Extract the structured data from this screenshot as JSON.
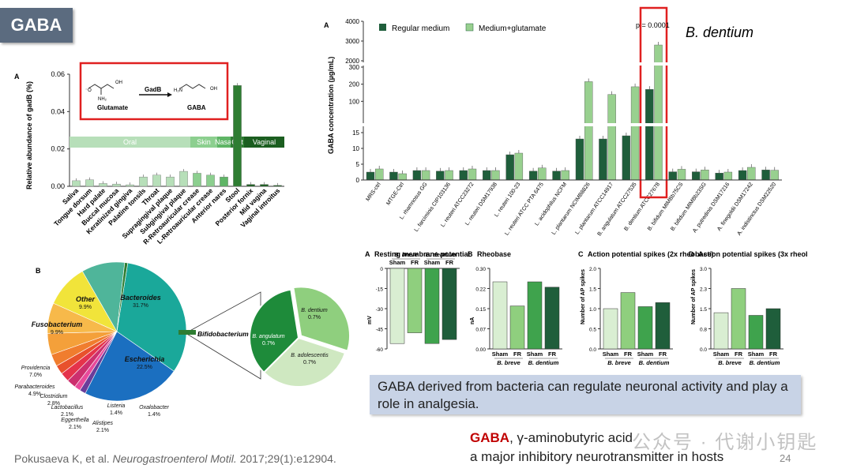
{
  "slide": {
    "tag": "GABA",
    "reference_prefix": "Pokusaeva K, et al. ",
    "reference_journal": "Neurogastroenterol Motil.",
    "reference_suffix": " 2017;29(1):e12904.",
    "caption": "GABA derived from bacteria can regulate neuronal activity and play a role in analgesia.",
    "bottom_gaba": "GABA",
    "bottom_line1_rest": ", γ-aminobutyric acid",
    "bottom_line2": "a major inhibitory neurotransmitter in hosts",
    "page_number": "24",
    "watermark": "公众号 · 代谢小钥匙"
  },
  "panel_a_left": {
    "letter": "A",
    "ylabel": "Relative abundance of gadB (%)",
    "yticks": [
      "0.06",
      "0.04",
      "0.02",
      "0.00"
    ],
    "reaction": {
      "enzyme": "GadB",
      "substrate": "Glutamate",
      "product": "GABA"
    },
    "bands": [
      "Oral",
      "Skin",
      "Nasal",
      "Gut",
      "Vaginal"
    ],
    "colors": {
      "oral": "#b7dfb9",
      "skin": "#8ccf8f",
      "nasal": "#5fb566",
      "gut": "#2e7d32",
      "vaginal": "#1b5e20",
      "frame": "#e02020"
    }
  },
  "chart_data": [
    {
      "type": "bar",
      "title": "",
      "ylabel": "Relative abundance of gadB (%)",
      "ylim": [
        0,
        0.06
      ],
      "categories": [
        "Saliva",
        "Tongue dorsum",
        "Hard palate",
        "Buccal mucosa",
        "Keratinized gingiva",
        "Palatine tonsils",
        "Throat",
        "Supragingival plaque",
        "Subgingival plaque",
        "R-Retroauricular crease",
        "L-Retroauricular crease",
        "Anterior nares",
        "Stool",
        "Posterior fornix",
        "Mid vagina",
        "Vaginal introitus"
      ],
      "values": [
        0.003,
        0.0035,
        0.0015,
        0.0012,
        0.0008,
        0.005,
        0.006,
        0.005,
        0.008,
        0.007,
        0.006,
        0.005,
        0.054,
        0.001,
        0.001,
        0.0005
      ]
    },
    {
      "type": "bar",
      "title": "B. dentium",
      "ylabel": "GABA concentration (µg/mL)",
      "annotation": "p = 0.0001",
      "yticks": [
        "4000",
        "3000",
        "2000",
        "300",
        "200",
        "100",
        "15",
        "10",
        "5",
        "0"
      ],
      "categories": [
        "MRS-ctrl",
        "MTGE-Ctrl",
        "L. rhamnosus GG",
        "L. farciminis CIP103136",
        "L. reuteri ATCC23272",
        "L. reuteri DSM17938",
        "L. reuteri 100-23",
        "L. reuteri ATCC PTA 6475",
        "L. acidophilus NCFM",
        "L. plantarum NCIMB8826",
        "L. plantarum ATCC14917",
        "B. angulatum ATCC27535",
        "B. dentium ATCC27678",
        "B. bifidum MIMBb75CS",
        "B. bifidum MIMBb23SG",
        "A. putredinis DSM17216",
        "A. finegoldii DSM17242",
        "A. indistinctus DSM22520"
      ],
      "series": [
        {
          "name": "Regular medium",
          "values": [
            2.5,
            2.5,
            3.0,
            2.8,
            3.0,
            3.0,
            8.0,
            2.8,
            2.8,
            13,
            13,
            14,
            170,
            2.6,
            2.6,
            2.2,
            3.0,
            3.2
          ]
        },
        {
          "name": "Medium+glutamate",
          "values": [
            3.5,
            2.0,
            3.0,
            3.0,
            3.5,
            3.0,
            8.5,
            3.8,
            3.0,
            215,
            140,
            185,
            2800,
            3.4,
            3.2,
            2.5,
            4.0,
            3.1
          ]
        }
      ],
      "colors": {
        "regular": "#1f5e3b",
        "glutamate": "#98d08f"
      }
    },
    {
      "type": "pie",
      "title": "",
      "categories": [
        "Bacteroides",
        "Escherichia",
        "Oxalobacter",
        "Listeria",
        "Alistipes",
        "Eggerthella",
        "Lactobacillus",
        "Clostridium",
        "Parabacteroides",
        "Providencia",
        "Fusobacterium",
        "Other",
        "Bifidobacterium"
      ],
      "values": [
        31.7,
        22.5,
        1.4,
        1.4,
        2.1,
        2.1,
        2.1,
        2.8,
        4.9,
        7.0,
        9.9,
        9.9,
        0.7
      ],
      "labels": [
        "31.7%",
        "22.5%",
        "1.4%",
        "1.4%",
        "2.1%",
        "2.1%",
        "2.1%",
        "2.8%",
        "4.9%",
        "7.0%",
        "9.9%",
        "9.9%",
        ""
      ],
      "colors": [
        "#1aa89a",
        "#1b6fc0",
        "#6a3d9a",
        "#e84a9b",
        "#cc2f6e",
        "#e5334b",
        "#e8512c",
        "#f07d2e",
        "#f4a03a",
        "#f7b94a",
        "#f1e43a",
        "#4fb59a",
        "#2e7d32"
      ]
    },
    {
      "type": "pie",
      "title": "",
      "categories": [
        "B. dentium",
        "B. angulatum",
        "B. adolescentis"
      ],
      "values": [
        0.7,
        0.7,
        0.7
      ],
      "labels": [
        "0.7%",
        "0.7%",
        "0.7%"
      ],
      "colors": [
        "#8fcf7e",
        "#1e8b3a",
        "#cfe8c1"
      ]
    },
    {
      "type": "bar",
      "title": "Resting membrane potential",
      "ylabel": "mV",
      "ylim": [
        -60,
        0
      ],
      "groups": [
        "B. breve",
        "B. dentium"
      ],
      "categories": [
        "Sham",
        "FR",
        "Sham",
        "FR"
      ],
      "values": [
        -56,
        -48,
        -56,
        -53
      ]
    },
    {
      "type": "bar",
      "title": "Rheobase",
      "ylabel": "nA",
      "ylim": [
        0,
        0.3
      ],
      "groups": [
        "B. breve",
        "B. dentium"
      ],
      "categories": [
        "Sham",
        "FR",
        "Sham",
        "FR"
      ],
      "values": [
        0.25,
        0.16,
        0.25,
        0.23
      ]
    },
    {
      "type": "bar",
      "title": "Action potential spikes (2x rheobase)",
      "ylabel": "Number of AP spikes",
      "ylim": [
        0,
        2.0
      ],
      "groups": [
        "B. breve",
        "B. dentium"
      ],
      "categories": [
        "Sham",
        "FR",
        "Sham",
        "FR"
      ],
      "values": [
        1.0,
        1.4,
        1.05,
        1.15
      ]
    },
    {
      "type": "bar",
      "title": "Action potential spikes (3x rheobase)",
      "ylabel": "Number of AP spikes",
      "ylim": [
        0,
        3.0
      ],
      "groups": [
        "B. breve",
        "B. dentium"
      ],
      "categories": [
        "Sham",
        "FR",
        "Sham",
        "FR"
      ],
      "values": [
        1.35,
        2.25,
        1.25,
        1.5
      ]
    }
  ],
  "panel_b": {
    "letter": "B",
    "bifido_label": "Bifidobacterium"
  },
  "panel_c": {
    "letters": [
      "A",
      "B",
      "C",
      "D"
    ],
    "colors": [
      "#d9eed2",
      "#8fcf7e",
      "#3fa34d",
      "#1f5e3b"
    ]
  }
}
